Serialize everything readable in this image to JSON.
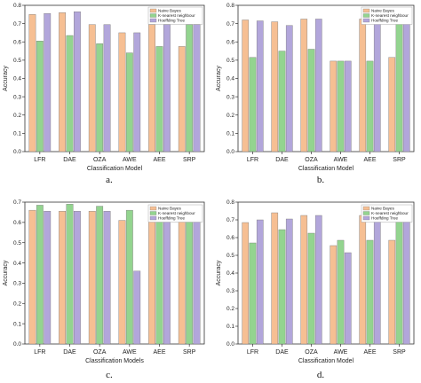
{
  "colors": {
    "Naive Bayes": "#f6bf93",
    "K-nearest neighbour": "#93d48f",
    "Hoeffding Tree": "#b2a6db"
  },
  "chart_data": [
    {
      "type": "bar",
      "panel_label": "a.",
      "categories": [
        "LFR",
        "DAE",
        "OZA",
        "AWE",
        "AEE",
        "SRP"
      ],
      "series": [
        {
          "name": "Naive Bayes",
          "values": [
            0.75,
            0.76,
            0.695,
            0.65,
            0.695,
            0.575
          ]
        },
        {
          "name": "K-nearest neighbour",
          "values": [
            0.605,
            0.635,
            0.59,
            0.54,
            0.575,
            0.695
          ]
        },
        {
          "name": "Hoeffding Tree",
          "values": [
            0.755,
            0.765,
            0.695,
            0.65,
            0.695,
            0.695
          ]
        }
      ],
      "xlabel": "Classification Model",
      "ylabel": "Accuracy",
      "ylim": [
        0,
        0.8
      ],
      "yticks": [
        "0.0",
        "0.1",
        "0.2",
        "0.3",
        "0.4",
        "0.5",
        "0.6",
        "0.7",
        "0.8"
      ],
      "legend": "top-right",
      "grid": false
    },
    {
      "type": "bar",
      "panel_label": "b.",
      "categories": [
        "LFR",
        "DAE",
        "OZA",
        "AWE",
        "AEE",
        "SRP"
      ],
      "series": [
        {
          "name": "Naive Bayes",
          "values": [
            0.72,
            0.71,
            0.725,
            0.495,
            0.725,
            0.515
          ]
        },
        {
          "name": "K-nearest neighbour",
          "values": [
            0.515,
            0.55,
            0.56,
            0.495,
            0.495,
            0.725
          ]
        },
        {
          "name": "Hoeffding Tree",
          "values": [
            0.715,
            0.69,
            0.725,
            0.495,
            0.725,
            0.715
          ]
        }
      ],
      "xlabel": "Classification Model",
      "ylabel": "Accuracy",
      "ylim": [
        0,
        0.8
      ],
      "yticks": [
        "0.0",
        "0.1",
        "0.2",
        "0.3",
        "0.4",
        "0.5",
        "0.6",
        "0.7",
        "0.8"
      ],
      "legend": "top-right",
      "grid": false
    },
    {
      "type": "bar",
      "panel_label": "c.",
      "categories": [
        "LFR",
        "DAE",
        "OZA",
        "AWE",
        "AEE",
        "SRP"
      ],
      "series": [
        {
          "name": "Naive Bayes",
          "values": [
            0.66,
            0.655,
            0.655,
            0.61,
            0.655,
            0.68
          ]
        },
        {
          "name": "K-nearest neighbour",
          "values": [
            0.685,
            0.69,
            0.68,
            0.66,
            0.68,
            0.645
          ]
        },
        {
          "name": "Hoeffding Tree",
          "values": [
            0.655,
            0.655,
            0.655,
            0.36,
            0.655,
            0.665
          ]
        }
      ],
      "xlabel": "Classification Models",
      "ylabel": "Accuracy",
      "ylim": [
        0,
        0.7
      ],
      "yticks": [
        "0.0",
        "0.1",
        "0.2",
        "0.3",
        "0.4",
        "0.5",
        "0.6",
        "0.7"
      ],
      "legend": "top-right",
      "grid": false
    },
    {
      "type": "bar",
      "panel_label": "d.",
      "categories": [
        "LFR",
        "DAE",
        "OZA",
        "AWE",
        "AEE",
        "SRP"
      ],
      "series": [
        {
          "name": "Naive Bayes",
          "values": [
            0.685,
            0.74,
            0.725,
            0.555,
            0.725,
            0.585
          ]
        },
        {
          "name": "K-nearest neighbour",
          "values": [
            0.57,
            0.645,
            0.625,
            0.585,
            0.585,
            0.725
          ]
        },
        {
          "name": "Hoeffding Tree",
          "values": [
            0.7,
            0.705,
            0.725,
            0.515,
            0.725,
            0.73
          ]
        }
      ],
      "xlabel": "Classification Model",
      "ylabel": "Accuracy",
      "ylim": [
        0,
        0.8
      ],
      "yticks": [
        "0.0",
        "0.1",
        "0.2",
        "0.3",
        "0.4",
        "0.5",
        "0.6",
        "0.7",
        "0.8"
      ],
      "legend": "top-right",
      "grid": false
    }
  ]
}
